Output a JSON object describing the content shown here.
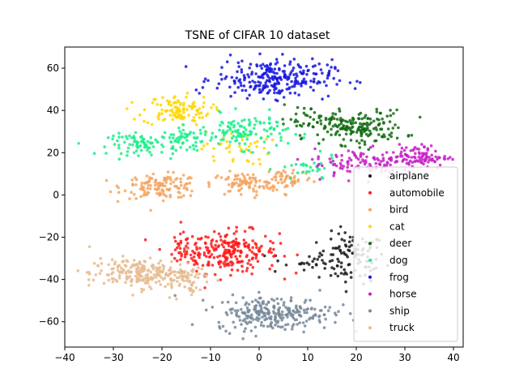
{
  "chart_data": {
    "type": "scatter",
    "title": "TSNE of CIFAR 10 dataset",
    "xlabel": "",
    "ylabel": "",
    "xlim": [
      -40,
      42
    ],
    "ylim": [
      -72,
      70
    ],
    "xticks": [
      -40,
      -30,
      -20,
      -10,
      0,
      10,
      20,
      30,
      40
    ],
    "yticks": [
      -60,
      -40,
      -20,
      0,
      20,
      40,
      60
    ],
    "grid": false,
    "legend_position": "lower-right",
    "series": [
      {
        "name": "airplane",
        "color": "#1a1a1a",
        "clusters": [
          {
            "cx": 19,
            "cy": -30,
            "sx": 3.5,
            "sy": 6,
            "n": 110
          },
          {
            "cx": 8,
            "cy": -32,
            "sx": 3,
            "sy": 3,
            "n": 20
          }
        ]
      },
      {
        "name": "automobile",
        "color": "#ff1a1a",
        "clusters": [
          {
            "cx": -6,
            "cy": -27,
            "sx": 5,
            "sy": 5,
            "n": 230
          },
          {
            "cx": -15,
            "cy": -26,
            "sx": 2.5,
            "sy": 4,
            "n": 40
          }
        ]
      },
      {
        "name": "bird",
        "color": "#f4a460",
        "clusters": [
          {
            "cx": -20,
            "cy": 4,
            "sx": 4,
            "sy": 2.8,
            "n": 130
          },
          {
            "cx": -3,
            "cy": 5,
            "sx": 3.5,
            "sy": 2.8,
            "n": 90
          },
          {
            "cx": 6,
            "cy": 8,
            "sx": 2.5,
            "sy": 2.8,
            "n": 50
          }
        ]
      },
      {
        "name": "cat",
        "color": "#ffd700",
        "clusters": [
          {
            "cx": -17,
            "cy": 40,
            "sx": 3.5,
            "sy": 3.5,
            "n": 110
          },
          {
            "cx": -5,
            "cy": 22,
            "sx": 3.5,
            "sy": 4,
            "n": 40
          }
        ]
      },
      {
        "name": "deer",
        "color": "#0f6b0f",
        "clusters": [
          {
            "cx": 20,
            "cy": 32,
            "sx": 5,
            "sy": 4,
            "n": 180
          },
          {
            "cx": 10,
            "cy": 36,
            "sx": 3,
            "sy": 3,
            "n": 30
          }
        ]
      },
      {
        "name": "dog",
        "color": "#1aee8a",
        "clusters": [
          {
            "cx": -24,
            "cy": 24,
            "sx": 3.5,
            "sy": 2.5,
            "n": 80
          },
          {
            "cx": -15,
            "cy": 26,
            "sx": 2.5,
            "sy": 3,
            "n": 50
          },
          {
            "cx": -3,
            "cy": 30,
            "sx": 4.5,
            "sy": 4,
            "n": 120
          },
          {
            "cx": 10,
            "cy": 12,
            "sx": 3,
            "sy": 3,
            "n": 30
          }
        ]
      },
      {
        "name": "frog",
        "color": "#1515e0",
        "clusters": [
          {
            "cx": 3,
            "cy": 55,
            "sx": 6,
            "sy": 4.5,
            "n": 260
          }
        ]
      },
      {
        "name": "horse",
        "color": "#c41ec4",
        "clusters": [
          {
            "cx": 32,
            "cy": 18,
            "sx": 3.5,
            "sy": 2.8,
            "n": 110
          },
          {
            "cx": 21,
            "cy": 15,
            "sx": 5,
            "sy": 3.5,
            "n": 90
          }
        ]
      },
      {
        "name": "ship",
        "color": "#778899",
        "clusters": [
          {
            "cx": 3,
            "cy": -56,
            "sx": 6,
            "sy": 4,
            "n": 260
          }
        ]
      },
      {
        "name": "truck",
        "color": "#e6bb8f",
        "clusters": [
          {
            "cx": -25,
            "cy": -37,
            "sx": 5,
            "sy": 3.5,
            "n": 200
          },
          {
            "cx": -16,
            "cy": -40,
            "sx": 3,
            "sy": 4,
            "n": 60
          }
        ]
      }
    ]
  }
}
